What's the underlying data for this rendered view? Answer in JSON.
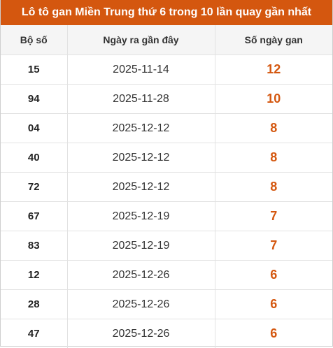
{
  "title": "Lô tô gan Miền Trung thứ 6 trong 10 lần quay gần nhất",
  "colors": {
    "accent": "#d4570f",
    "title_text": "#ffffff"
  },
  "table": {
    "headers": [
      "Bộ số",
      "Ngày ra gần đây",
      "Số ngày gan"
    ],
    "rows": [
      {
        "number": "15",
        "date": "2025-11-14",
        "days": "12"
      },
      {
        "number": "94",
        "date": "2025-11-28",
        "days": "10"
      },
      {
        "number": "04",
        "date": "2025-12-12",
        "days": "8"
      },
      {
        "number": "40",
        "date": "2025-12-12",
        "days": "8"
      },
      {
        "number": "72",
        "date": "2025-12-12",
        "days": "8"
      },
      {
        "number": "67",
        "date": "2025-12-19",
        "days": "7"
      },
      {
        "number": "83",
        "date": "2025-12-19",
        "days": "7"
      },
      {
        "number": "12",
        "date": "2025-12-26",
        "days": "6"
      },
      {
        "number": "28",
        "date": "2025-12-26",
        "days": "6"
      },
      {
        "number": "47",
        "date": "2025-12-26",
        "days": "6"
      }
    ]
  }
}
